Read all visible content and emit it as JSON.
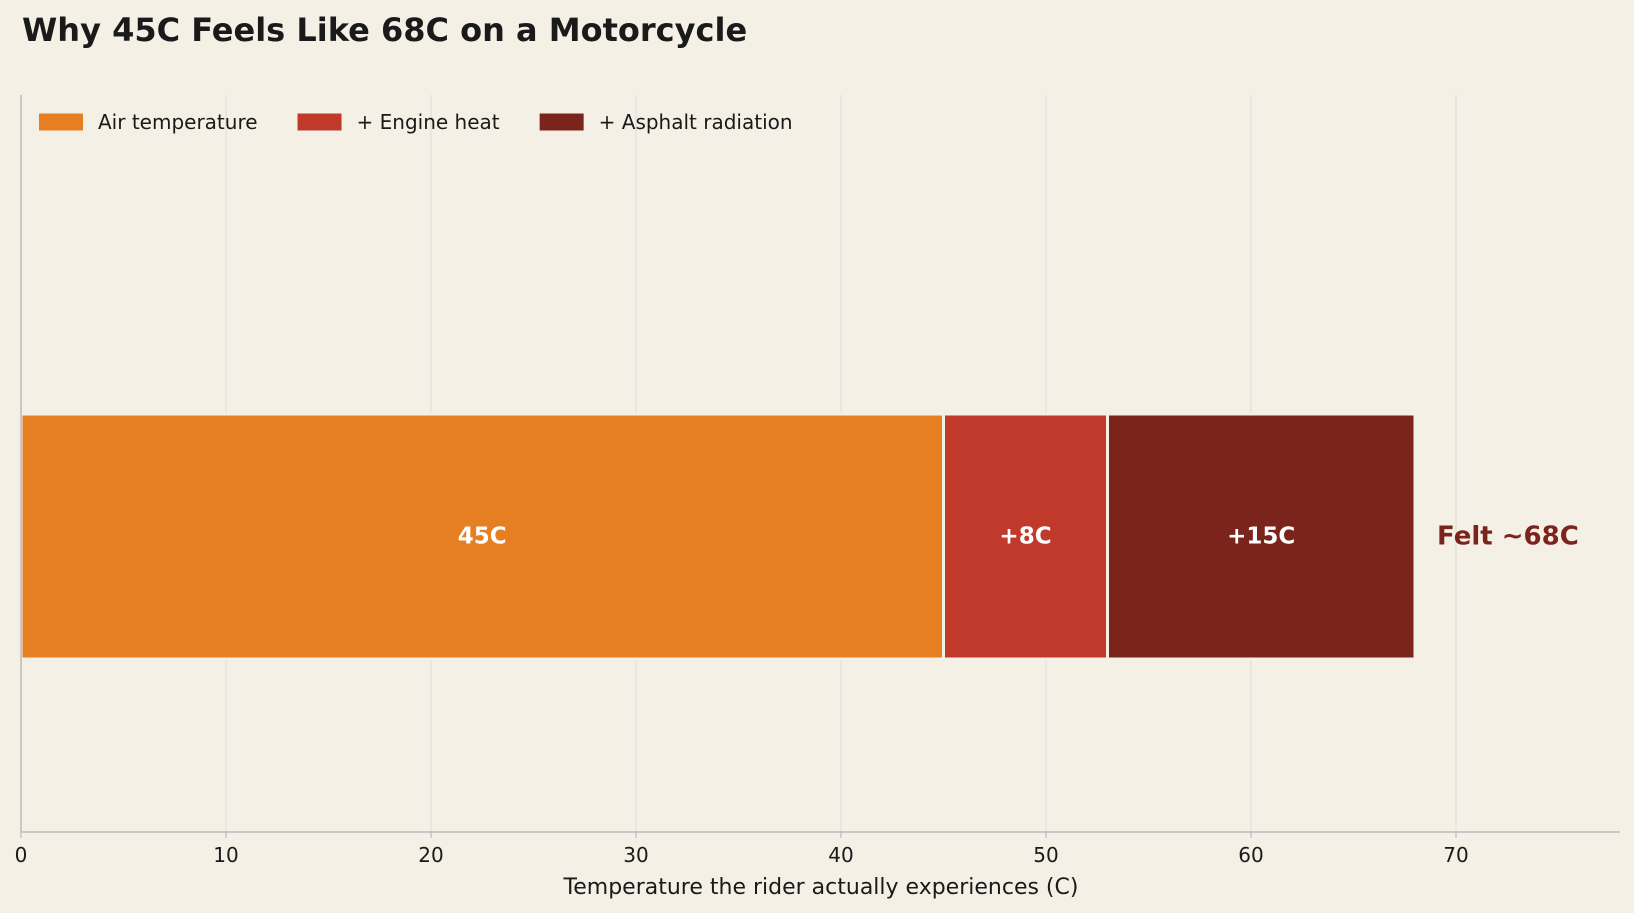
{
  "chart_data": {
    "type": "bar",
    "orientation": "horizontal",
    "stacked": true,
    "title": "Why 45C Feels Like 68C on a Motorcycle",
    "xlabel": "Temperature the rider actually experiences (C)",
    "ylabel": "",
    "xlim": [
      0,
      78
    ],
    "xticks": [
      "0",
      "10",
      "20",
      "30",
      "40",
      "50",
      "60",
      "70"
    ],
    "grid": "vertical",
    "legend_position": "top-left",
    "series": [
      {
        "name": "Air temperature",
        "value": 45,
        "label": "45C",
        "color": "#e67e22"
      },
      {
        "name": "+ Engine heat",
        "value": 8,
        "label": "+8C",
        "color": "#c0392b"
      },
      {
        "name": "+ Asphalt radiation",
        "value": 15,
        "label": "+15C",
        "color": "#7b241c"
      }
    ],
    "total": {
      "value": 68,
      "label": "Felt ~68C",
      "color": "#7b241c"
    }
  },
  "colors": {
    "background": "#f5f0e6",
    "grid": "#dddddd",
    "axis": "#bbbbbb",
    "text": "#1a1a1a"
  }
}
